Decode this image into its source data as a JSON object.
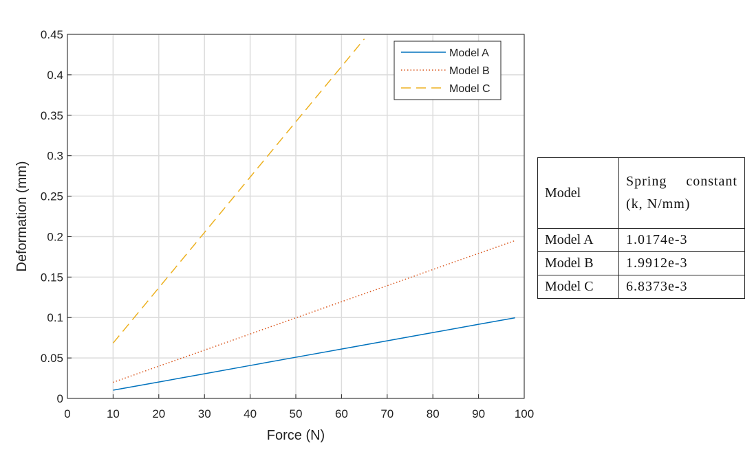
{
  "chart_data": {
    "type": "line",
    "xlabel": "Force (N)",
    "ylabel": "Deformation (mm)",
    "x": [
      10,
      20,
      30,
      40,
      50,
      60,
      65,
      70,
      80,
      90,
      98
    ],
    "series": [
      {
        "name": "Model A",
        "color": "#0072BD",
        "dash": "solid",
        "values": [
          0.0102,
          0.0203,
          0.0305,
          0.0407,
          0.0509,
          0.061,
          0.0661,
          0.0712,
          0.0814,
          0.0916,
          0.0997
        ]
      },
      {
        "name": "Model B",
        "color": "#D95319",
        "dash": "dotted",
        "values": [
          0.0199,
          0.0398,
          0.0597,
          0.0796,
          0.0996,
          0.1195,
          0.1294,
          0.1394,
          0.1593,
          0.1792,
          0.1951
        ]
      },
      {
        "name": "Model C",
        "color": "#EDB120",
        "dash": "dashed",
        "values": [
          0.0684,
          0.1367,
          0.2051,
          0.2735,
          0.3419,
          0.4102,
          0.4444,
          null,
          null,
          null,
          null
        ]
      }
    ],
    "xlim": [
      0,
      100
    ],
    "xticks": [
      0,
      10,
      20,
      30,
      40,
      50,
      60,
      70,
      80,
      90,
      100
    ],
    "ylim": [
      0,
      0.45
    ],
    "yticks": [
      0,
      0.05,
      0.1,
      0.15,
      0.2,
      0.25,
      0.3,
      0.35,
      0.4,
      0.45
    ],
    "grid": true,
    "legend": "top-right"
  },
  "table": {
    "header": [
      "Model",
      "Spring constant (k, N/mm)"
    ],
    "rows": [
      [
        "Model A",
        "1.0174e-3"
      ],
      [
        "Model B",
        "1.9912e-3"
      ],
      [
        "Model C",
        "6.8373e-3"
      ]
    ]
  }
}
